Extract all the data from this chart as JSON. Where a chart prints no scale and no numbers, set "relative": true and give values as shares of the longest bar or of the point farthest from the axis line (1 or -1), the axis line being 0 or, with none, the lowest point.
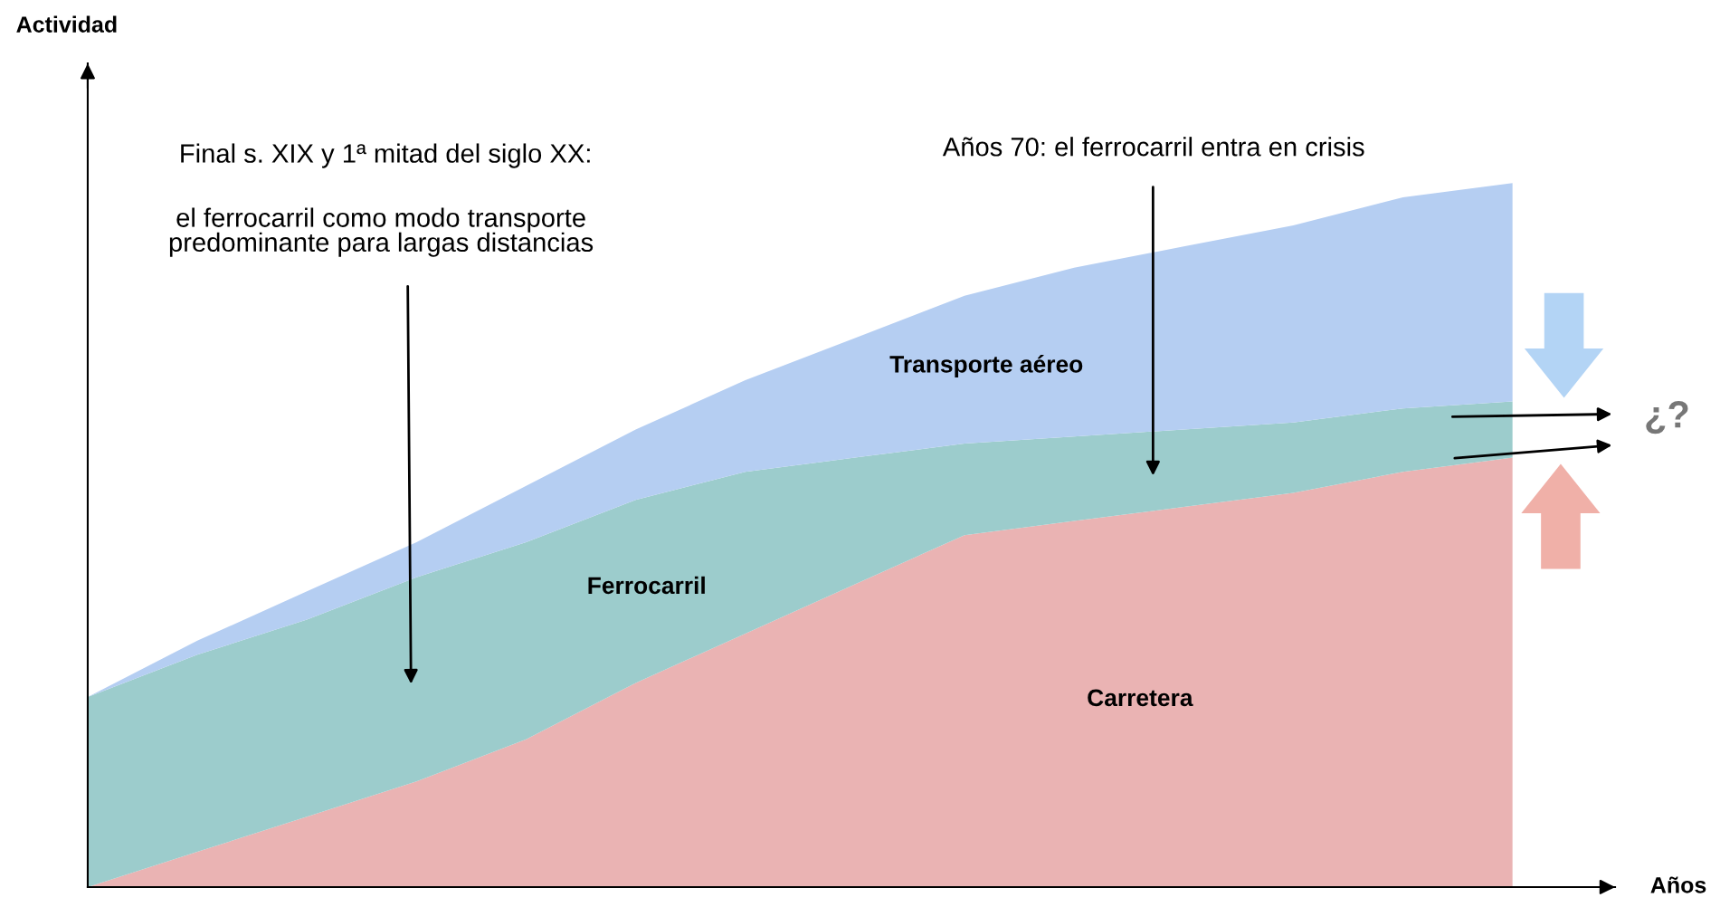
{
  "chart_data": {
    "type": "area",
    "relative": true,
    "stacked": true,
    "xlabel": "Años",
    "categories": [
      null,
      null,
      null,
      null,
      null,
      null,
      null,
      null,
      null,
      null,
      null,
      null,
      null,
      null
    ],
    "series": [
      {
        "name": "Carretera",
        "color": "#eab3b3",
        "values": [
          0,
          0.05,
          0.1,
          0.15,
          0.21,
          0.29,
          0.36,
          0.43,
          0.5,
          0.52,
          0.54,
          0.56,
          0.59,
          0.61
        ]
      },
      {
        "name": "Ferrocarril",
        "color": "#9ccccc",
        "values": [
          0.27,
          0.28,
          0.28,
          0.29,
          0.28,
          0.26,
          0.23,
          0.18,
          0.13,
          0.12,
          0.11,
          0.1,
          0.09,
          0.08
        ]
      },
      {
        "name": "Transporte aéreo",
        "color": "#b5cef2",
        "values": [
          0,
          0.02,
          0.04,
          0.05,
          0.08,
          0.1,
          0.13,
          0.17,
          0.21,
          0.24,
          0.26,
          0.28,
          0.3,
          0.31
        ]
      }
    ],
    "annotations": [
      "Actividad",
      "Final s. XIX y 1ª mitad del siglo XX:",
      "el ferrocarril como modo transporte\npredominante para largas distancias",
      "Años 70: el ferrocarril entra en crisis",
      "¿?"
    ],
    "legend": false,
    "grid": false
  }
}
